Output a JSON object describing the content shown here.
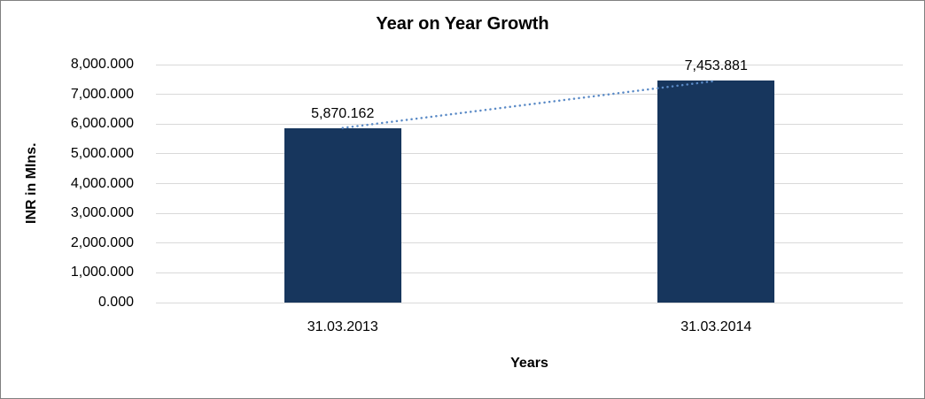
{
  "chart_data": {
    "type": "bar",
    "title": "Year on Year Growth",
    "xlabel": "Years",
    "ylabel": "INR in Mlns.",
    "categories": [
      "31.03.2013",
      "31.03.2014"
    ],
    "values": [
      5870.162,
      7453.881
    ],
    "value_labels": [
      "5,870.162",
      "7,453.881"
    ],
    "ylim": [
      0,
      8000
    ],
    "yticks": [
      {
        "value": 0,
        "label": "0.000"
      },
      {
        "value": 1000,
        "label": "1,000.000"
      },
      {
        "value": 2000,
        "label": "2,000.000"
      },
      {
        "value": 3000,
        "label": "3,000.000"
      },
      {
        "value": 4000,
        "label": "4,000.000"
      },
      {
        "value": 5000,
        "label": "5,000.000"
      },
      {
        "value": 6000,
        "label": "6,000.000"
      },
      {
        "value": 7000,
        "label": "7,000.000"
      },
      {
        "value": 8000,
        "label": "8,000.000"
      }
    ],
    "grid": true,
    "legend": "none",
    "trendline": true,
    "bar_color": "#17365D",
    "trendline_color": "#5A8AC6",
    "gridline_color": "#D9D9D9"
  }
}
